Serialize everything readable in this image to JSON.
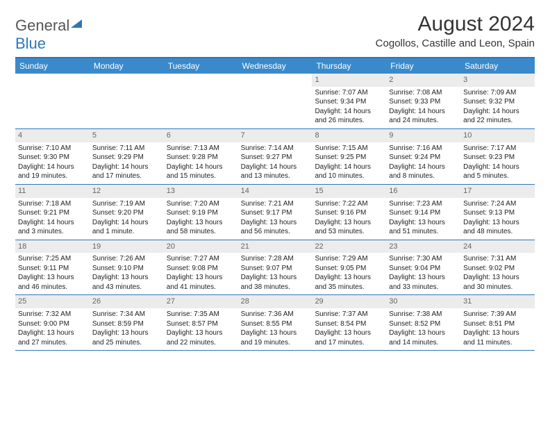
{
  "brand": {
    "part1": "General",
    "part2": "Blue"
  },
  "title": "August 2024",
  "location": "Cogollos, Castille and Leon, Spain",
  "colors": {
    "header_bg": "#3a8acb",
    "border": "#2d77b8",
    "daynum_bg": "#ececec",
    "text": "#222222",
    "page_bg": "#ffffff"
  },
  "weekdays": [
    "Sunday",
    "Monday",
    "Tuesday",
    "Wednesday",
    "Thursday",
    "Friday",
    "Saturday"
  ],
  "weeks": [
    [
      {
        "n": "",
        "sr": "",
        "ss": "",
        "dl": ""
      },
      {
        "n": "",
        "sr": "",
        "ss": "",
        "dl": ""
      },
      {
        "n": "",
        "sr": "",
        "ss": "",
        "dl": ""
      },
      {
        "n": "",
        "sr": "",
        "ss": "",
        "dl": ""
      },
      {
        "n": "1",
        "sr": "Sunrise: 7:07 AM",
        "ss": "Sunset: 9:34 PM",
        "dl": "Daylight: 14 hours and 26 minutes."
      },
      {
        "n": "2",
        "sr": "Sunrise: 7:08 AM",
        "ss": "Sunset: 9:33 PM",
        "dl": "Daylight: 14 hours and 24 minutes."
      },
      {
        "n": "3",
        "sr": "Sunrise: 7:09 AM",
        "ss": "Sunset: 9:32 PM",
        "dl": "Daylight: 14 hours and 22 minutes."
      }
    ],
    [
      {
        "n": "4",
        "sr": "Sunrise: 7:10 AM",
        "ss": "Sunset: 9:30 PM",
        "dl": "Daylight: 14 hours and 19 minutes."
      },
      {
        "n": "5",
        "sr": "Sunrise: 7:11 AM",
        "ss": "Sunset: 9:29 PM",
        "dl": "Daylight: 14 hours and 17 minutes."
      },
      {
        "n": "6",
        "sr": "Sunrise: 7:13 AM",
        "ss": "Sunset: 9:28 PM",
        "dl": "Daylight: 14 hours and 15 minutes."
      },
      {
        "n": "7",
        "sr": "Sunrise: 7:14 AM",
        "ss": "Sunset: 9:27 PM",
        "dl": "Daylight: 14 hours and 13 minutes."
      },
      {
        "n": "8",
        "sr": "Sunrise: 7:15 AM",
        "ss": "Sunset: 9:25 PM",
        "dl": "Daylight: 14 hours and 10 minutes."
      },
      {
        "n": "9",
        "sr": "Sunrise: 7:16 AM",
        "ss": "Sunset: 9:24 PM",
        "dl": "Daylight: 14 hours and 8 minutes."
      },
      {
        "n": "10",
        "sr": "Sunrise: 7:17 AM",
        "ss": "Sunset: 9:23 PM",
        "dl": "Daylight: 14 hours and 5 minutes."
      }
    ],
    [
      {
        "n": "11",
        "sr": "Sunrise: 7:18 AM",
        "ss": "Sunset: 9:21 PM",
        "dl": "Daylight: 14 hours and 3 minutes."
      },
      {
        "n": "12",
        "sr": "Sunrise: 7:19 AM",
        "ss": "Sunset: 9:20 PM",
        "dl": "Daylight: 14 hours and 1 minute."
      },
      {
        "n": "13",
        "sr": "Sunrise: 7:20 AM",
        "ss": "Sunset: 9:19 PM",
        "dl": "Daylight: 13 hours and 58 minutes."
      },
      {
        "n": "14",
        "sr": "Sunrise: 7:21 AM",
        "ss": "Sunset: 9:17 PM",
        "dl": "Daylight: 13 hours and 56 minutes."
      },
      {
        "n": "15",
        "sr": "Sunrise: 7:22 AM",
        "ss": "Sunset: 9:16 PM",
        "dl": "Daylight: 13 hours and 53 minutes."
      },
      {
        "n": "16",
        "sr": "Sunrise: 7:23 AM",
        "ss": "Sunset: 9:14 PM",
        "dl": "Daylight: 13 hours and 51 minutes."
      },
      {
        "n": "17",
        "sr": "Sunrise: 7:24 AM",
        "ss": "Sunset: 9:13 PM",
        "dl": "Daylight: 13 hours and 48 minutes."
      }
    ],
    [
      {
        "n": "18",
        "sr": "Sunrise: 7:25 AM",
        "ss": "Sunset: 9:11 PM",
        "dl": "Daylight: 13 hours and 46 minutes."
      },
      {
        "n": "19",
        "sr": "Sunrise: 7:26 AM",
        "ss": "Sunset: 9:10 PM",
        "dl": "Daylight: 13 hours and 43 minutes."
      },
      {
        "n": "20",
        "sr": "Sunrise: 7:27 AM",
        "ss": "Sunset: 9:08 PM",
        "dl": "Daylight: 13 hours and 41 minutes."
      },
      {
        "n": "21",
        "sr": "Sunrise: 7:28 AM",
        "ss": "Sunset: 9:07 PM",
        "dl": "Daylight: 13 hours and 38 minutes."
      },
      {
        "n": "22",
        "sr": "Sunrise: 7:29 AM",
        "ss": "Sunset: 9:05 PM",
        "dl": "Daylight: 13 hours and 35 minutes."
      },
      {
        "n": "23",
        "sr": "Sunrise: 7:30 AM",
        "ss": "Sunset: 9:04 PM",
        "dl": "Daylight: 13 hours and 33 minutes."
      },
      {
        "n": "24",
        "sr": "Sunrise: 7:31 AM",
        "ss": "Sunset: 9:02 PM",
        "dl": "Daylight: 13 hours and 30 minutes."
      }
    ],
    [
      {
        "n": "25",
        "sr": "Sunrise: 7:32 AM",
        "ss": "Sunset: 9:00 PM",
        "dl": "Daylight: 13 hours and 27 minutes."
      },
      {
        "n": "26",
        "sr": "Sunrise: 7:34 AM",
        "ss": "Sunset: 8:59 PM",
        "dl": "Daylight: 13 hours and 25 minutes."
      },
      {
        "n": "27",
        "sr": "Sunrise: 7:35 AM",
        "ss": "Sunset: 8:57 PM",
        "dl": "Daylight: 13 hours and 22 minutes."
      },
      {
        "n": "28",
        "sr": "Sunrise: 7:36 AM",
        "ss": "Sunset: 8:55 PM",
        "dl": "Daylight: 13 hours and 19 minutes."
      },
      {
        "n": "29",
        "sr": "Sunrise: 7:37 AM",
        "ss": "Sunset: 8:54 PM",
        "dl": "Daylight: 13 hours and 17 minutes."
      },
      {
        "n": "30",
        "sr": "Sunrise: 7:38 AM",
        "ss": "Sunset: 8:52 PM",
        "dl": "Daylight: 13 hours and 14 minutes."
      },
      {
        "n": "31",
        "sr": "Sunrise: 7:39 AM",
        "ss": "Sunset: 8:51 PM",
        "dl": "Daylight: 13 hours and 11 minutes."
      }
    ]
  ]
}
